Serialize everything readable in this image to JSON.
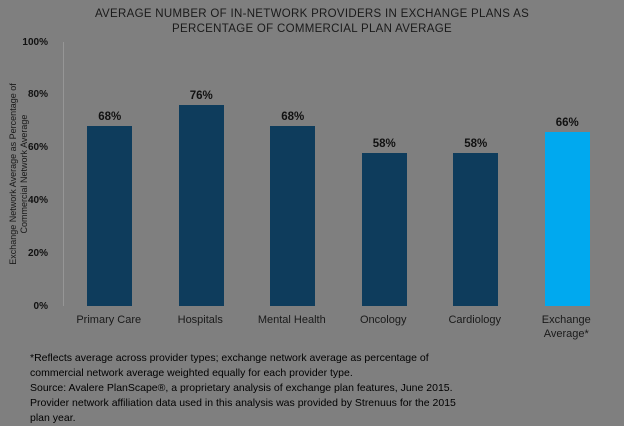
{
  "chart_data": {
    "type": "bar",
    "title": "AVERAGE NUMBER OF IN-NETWORK PROVIDERS IN EXCHANGE PLANS AS PERCENTAGE OF COMMERCIAL PLAN AVERAGE",
    "title_lines": [
      "AVERAGE NUMBER OF IN-NETWORK PROVIDERS IN EXCHANGE PLANS AS",
      "PERCENTAGE OF COMMERCIAL PLAN AVERAGE"
    ],
    "categories": [
      "Primary Care",
      "Hospitals",
      "Mental Health",
      "Oncology",
      "Cardiology",
      "Exchange Average*"
    ],
    "values": [
      68,
      76,
      68,
      58,
      58,
      66
    ],
    "value_labels": [
      "68%",
      "76%",
      "68%",
      "58%",
      "58%",
      "66%"
    ],
    "xlabel": "",
    "ylabel": "Exchange Network Average as Percentage of Commercial Network Average",
    "ylabel_lines": [
      "Exchange Network Average as Percentage of",
      "Commercial Network Average"
    ],
    "ylim": [
      0,
      100
    ],
    "yticks": [
      "100%",
      "80%",
      "60%",
      "40%",
      "20%",
      "0%"
    ],
    "grid": false,
    "legend": false,
    "bar_colors": [
      "#0e3c5c",
      "#0e3c5c",
      "#0e3c5c",
      "#0e3c5c",
      "#0e3c5c",
      "#00a9ef"
    ],
    "highlight_index": 5
  },
  "colors": {
    "background": "#7f7f7f",
    "bar_default": "#0e3c5c",
    "bar_highlight": "#00a9ef",
    "text": "#1a1a1a",
    "axis_line": "#969696"
  },
  "footnote_lines": [
    "*Reflects average across provider types; exchange network average as percentage of",
    "commercial network average weighted equally for each provider type.",
    "Source: Avalere PlanScape®, a proprietary analysis of exchange plan features, June 2015.",
    "Provider network affiliation data used in this analysis was provided by Strenuus for the 2015",
    "plan year."
  ]
}
